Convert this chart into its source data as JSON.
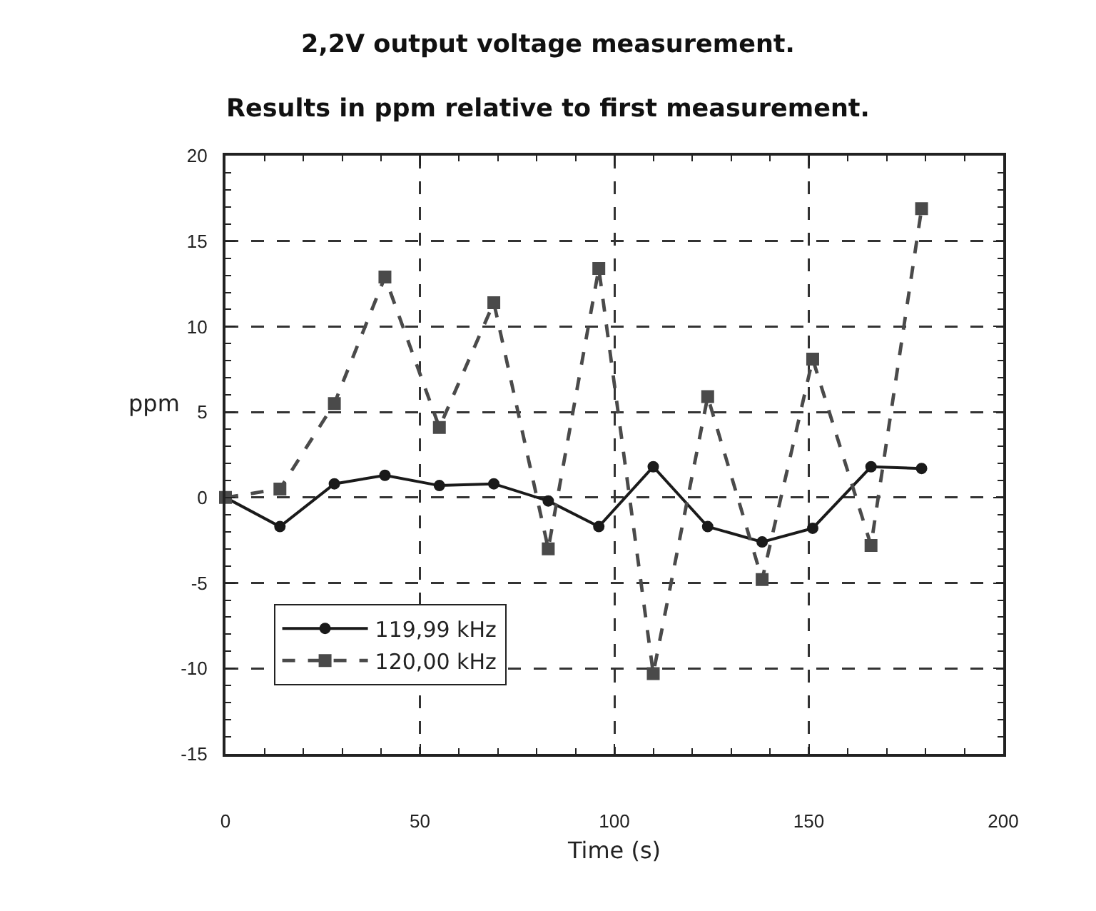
{
  "chart_data": {
    "type": "line",
    "title": "2,2V output voltage measurement.",
    "subtitle": "Results in ppm relative to first measurement.",
    "xlabel": "Time (s)",
    "ylabel": "ppm",
    "x": [
      0,
      14,
      28,
      41,
      55,
      69,
      83,
      96,
      110,
      124,
      138,
      151,
      166,
      179
    ],
    "series": [
      {
        "name": "119,99 kHz",
        "color": "#1a1a1a",
        "marker": "circle",
        "line_style": "solid",
        "values": [
          0,
          -1.7,
          0.8,
          1.3,
          0.7,
          0.8,
          -0.2,
          -1.7,
          1.8,
          -1.7,
          -2.6,
          -1.8,
          1.8,
          1.7
        ]
      },
      {
        "name": "120,00 kHz",
        "color": "#4a4a4a",
        "marker": "square",
        "line_style": "dashed",
        "values": [
          0,
          0.5,
          5.5,
          12.9,
          4.1,
          11.4,
          -3.0,
          13.4,
          -10.3,
          5.9,
          -4.8,
          8.1,
          -2.8,
          16.9
        ]
      }
    ],
    "xlim": [
      0,
      200
    ],
    "xticks": [
      0,
      50,
      100,
      150,
      200
    ],
    "ylim": [
      -15,
      20
    ],
    "yticks": [
      -15,
      -10,
      -5,
      0,
      5,
      10,
      15,
      20
    ],
    "grid": true,
    "legend": "bottom left"
  }
}
